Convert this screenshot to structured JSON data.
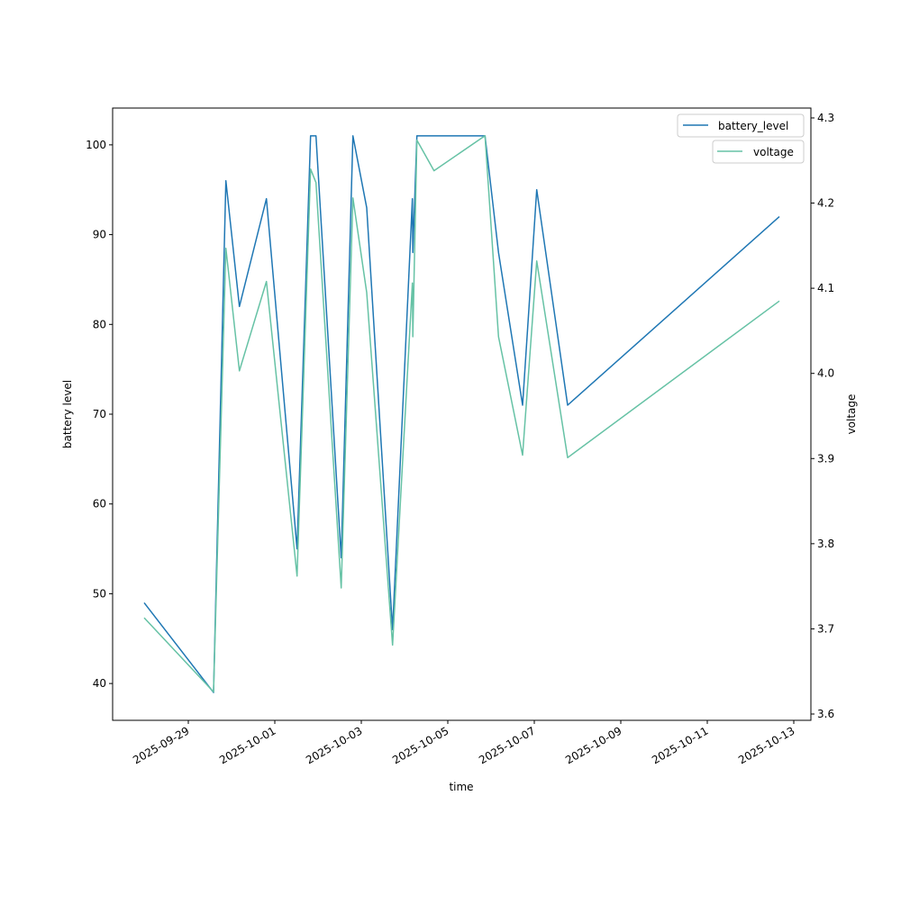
{
  "chart_data": {
    "type": "line",
    "title": "",
    "xlabel": "time",
    "ylabel": "battery level",
    "ylabel_right": "voltage",
    "xlim": [
      "2025-09-27 06:00",
      "2025-10-13 09:30"
    ],
    "ylim": [
      35.9,
      104.1
    ],
    "ylim_right": [
      3.5926,
      4.3116
    ],
    "x_ticks": [
      "2025-09-29",
      "2025-10-01",
      "2025-10-03",
      "2025-10-05",
      "2025-10-07",
      "2025-10-09",
      "2025-10-11",
      "2025-10-13"
    ],
    "y_ticks": [
      40,
      50,
      60,
      70,
      80,
      90,
      100
    ],
    "y_ticks_right": [
      "3.6",
      "3.7",
      "3.8",
      "3.9",
      "4.0",
      "4.1",
      "4.2",
      "4.3"
    ],
    "grid": false,
    "x": [
      "2025-09-27 23:30",
      "2025-09-29 14:00",
      "2025-09-29 20:51",
      "2025-09-30 04:21",
      "2025-09-30 19:21",
      "2025-10-01 12:21",
      "2025-10-01 19:51",
      "2025-10-01 22:51",
      "2025-10-02 12:50",
      "2025-10-02 19:21",
      "2025-10-03 03:00",
      "2025-10-03 17:21",
      "2025-10-04 04:21",
      "2025-10-04 04:35",
      "2025-10-04 06:51",
      "2025-10-04 16:20",
      "2025-10-05 20:39",
      "2025-10-06 04:09",
      "2025-10-06 17:30",
      "2025-10-07 01:21",
      "2025-10-07 18:30",
      "2025-10-12 16:00"
    ],
    "series": [
      {
        "name": "battery_level",
        "axis": "left",
        "color": "#1f77b4",
        "values": [
          49,
          39,
          96,
          82,
          94,
          55,
          101,
          101,
          54,
          101,
          93,
          46,
          94,
          88,
          101,
          101,
          101,
          88,
          71,
          95,
          71,
          92
        ]
      },
      {
        "name": "voltage",
        "axis": "right",
        "color": "#66c2a5",
        "values": [
          3.713,
          3.626,
          4.147,
          4.003,
          4.108,
          3.762,
          4.24,
          4.224,
          3.748,
          4.206,
          4.095,
          3.681,
          4.106,
          4.043,
          4.274,
          4.238,
          4.279,
          4.043,
          3.904,
          4.132,
          3.901,
          4.085
        ]
      }
    ],
    "legends": [
      {
        "placement": "top-right",
        "entries": [
          "battery_level"
        ]
      },
      {
        "placement": "top-right",
        "entries": [
          "voltage"
        ]
      }
    ]
  }
}
